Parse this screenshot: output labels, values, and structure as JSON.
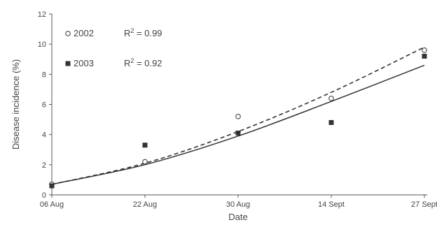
{
  "chart_data": {
    "type": "scatter",
    "categories": [
      "06 Aug",
      "22 Aug",
      "30 Aug",
      "14 Sept",
      "27 Sept"
    ],
    "xlabel": "Date",
    "ylabel": "Disease incidence (%)",
    "ylim": [
      0,
      12
    ],
    "yticks": [
      0,
      2,
      4,
      6,
      8,
      10,
      12
    ],
    "grid": false,
    "legend_position": "top-left",
    "series": [
      {
        "name": "2002",
        "marker": "open-circle",
        "values": [
          0.7,
          2.2,
          5.2,
          6.4,
          9.6
        ],
        "fit": {
          "style": "dashed",
          "values": [
            0.7,
            2.1,
            4.2,
            6.8,
            9.8
          ]
        },
        "r2_label": "R",
        "r2_sup": "2",
        "r2_value": " = 0.99"
      },
      {
        "name": "2003",
        "marker": "filled-square",
        "values": [
          0.6,
          3.3,
          4.1,
          4.8,
          9.2
        ],
        "fit": {
          "style": "solid",
          "values": [
            0.7,
            2.0,
            3.9,
            6.2,
            8.6
          ]
        },
        "r2_label": "R",
        "r2_sup": "2",
        "r2_value": " = 0.92"
      }
    ]
  },
  "colors": {
    "axis": "#555555",
    "line": "#333333",
    "marker": "#333333",
    "text": "#444444"
  }
}
